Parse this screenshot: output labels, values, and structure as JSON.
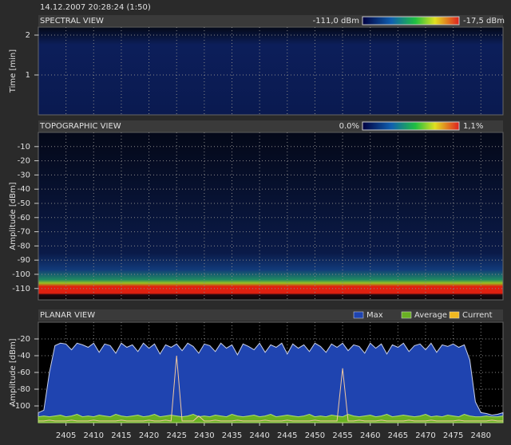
{
  "timestamp": "14.12.2007 20:28:24 (1:50)",
  "chart_data": [
    {
      "type": "heatmap",
      "title": "SPECTRAL VIEW",
      "y_label": "Time [min]",
      "ylim": [
        0,
        2.2
      ],
      "yticks": [
        1,
        2
      ],
      "grid": true,
      "scale_min_label": "-111,0 dBm",
      "scale_max_label": "-17,5 dBm"
    },
    {
      "type": "heatmap",
      "title": "TOPOGRAPHIC VIEW",
      "y_label": "Amplitude [dBm]",
      "ylim": [
        -118,
        0
      ],
      "yticks": [
        -10,
        -20,
        -30,
        -40,
        -50,
        -60,
        -70,
        -80,
        -90,
        -100,
        -110
      ],
      "grid": true,
      "scale_min_label": "0.0%",
      "scale_max_label": "1,1%"
    },
    {
      "type": "area",
      "title": "PLANAR VIEW",
      "y_label": "Amplitude [dBm]",
      "xlim": [
        2400,
        2484
      ],
      "ylim": [
        -120,
        0
      ],
      "xticks": [
        2405,
        2410,
        2415,
        2420,
        2425,
        2430,
        2435,
        2440,
        2445,
        2450,
        2455,
        2460,
        2465,
        2470,
        2475,
        2480
      ],
      "yticks": [
        -20,
        -40,
        -60,
        -80,
        -100
      ],
      "grid": true,
      "x": [
        2400,
        2401,
        2402,
        2403,
        2404,
        2405,
        2406,
        2407,
        2408,
        2409,
        2410,
        2411,
        2412,
        2413,
        2414,
        2415,
        2416,
        2417,
        2418,
        2419,
        2420,
        2421,
        2422,
        2423,
        2424,
        2425,
        2426,
        2427,
        2428,
        2429,
        2430,
        2431,
        2432,
        2433,
        2434,
        2435,
        2436,
        2437,
        2438,
        2439,
        2440,
        2441,
        2442,
        2443,
        2444,
        2445,
        2446,
        2447,
        2448,
        2449,
        2450,
        2451,
        2452,
        2453,
        2454,
        2455,
        2456,
        2457,
        2458,
        2459,
        2460,
        2461,
        2462,
        2463,
        2464,
        2465,
        2466,
        2467,
        2468,
        2469,
        2470,
        2471,
        2472,
        2473,
        2474,
        2475,
        2476,
        2477,
        2478,
        2479,
        2480,
        2481,
        2482,
        2483,
        2484
      ],
      "series": [
        {
          "name": "Max",
          "color": "#1f44b0",
          "values": [
            -108,
            -105,
            -60,
            -28,
            -25,
            -26,
            -33,
            -25,
            -27,
            -30,
            -25,
            -36,
            -26,
            -28,
            -37,
            -25,
            -30,
            -27,
            -35,
            -25,
            -31,
            -26,
            -38,
            -27,
            -30,
            -26,
            -34,
            -25,
            -29,
            -37,
            -26,
            -28,
            -35,
            -25,
            -31,
            -27,
            -39,
            -26,
            -29,
            -33,
            -25,
            -36,
            -27,
            -30,
            -25,
            -38,
            -26,
            -31,
            -27,
            -35,
            -25,
            -29,
            -36,
            -26,
            -30,
            -25,
            -34,
            -27,
            -29,
            -37,
            -25,
            -31,
            -26,
            -38,
            -27,
            -30,
            -25,
            -35,
            -28,
            -26,
            -33,
            -25,
            -36,
            -27,
            -29,
            -26,
            -30,
            -27,
            -45,
            -95,
            -108,
            -109,
            -111,
            -110,
            -108
          ]
        },
        {
          "name": "Average",
          "color": "#6ab023",
          "values": [
            -113,
            -112,
            -113,
            -112,
            -111,
            -113,
            -112,
            -110,
            -113,
            -112,
            -113,
            -111,
            -112,
            -113,
            -110,
            -112,
            -113,
            -112,
            -111,
            -113,
            -112,
            -110,
            -113,
            -112,
            -111,
            -112,
            -113,
            -112,
            -110,
            -113,
            -112,
            -113,
            -111,
            -112,
            -113,
            -110,
            -112,
            -113,
            -112,
            -111,
            -113,
            -112,
            -110,
            -113,
            -112,
            -111,
            -112,
            -113,
            -112,
            -110,
            -113,
            -112,
            -113,
            -111,
            -112,
            -113,
            -110,
            -112,
            -113,
            -112,
            -111,
            -113,
            -112,
            -110,
            -113,
            -112,
            -111,
            -112,
            -113,
            -112,
            -110,
            -113,
            -112,
            -113,
            -111,
            -112,
            -113,
            -110,
            -112,
            -113,
            -113,
            -112,
            -113,
            -113,
            -112
          ]
        },
        {
          "name": "Current",
          "color": "#f0b820",
          "values": [
            -118,
            -118,
            -117,
            -118,
            -118,
            -118,
            -117,
            -118,
            -118,
            -118,
            -117,
            -118,
            -118,
            -118,
            -118,
            -117,
            -118,
            -118,
            -118,
            -118,
            -117,
            -118,
            -118,
            -117,
            -118,
            -40,
            -118,
            -118,
            -118,
            -112,
            -118,
            -118,
            -117,
            -118,
            -118,
            -118,
            -117,
            -118,
            -118,
            -118,
            -118,
            -117,
            -118,
            -118,
            -118,
            -117,
            -118,
            -118,
            -118,
            -118,
            -117,
            -118,
            -118,
            -118,
            -118,
            -55,
            -118,
            -118,
            -117,
            -118,
            -118,
            -118,
            -117,
            -118,
            -118,
            -118,
            -118,
            -117,
            -118,
            -118,
            -118,
            -117,
            -118,
            -118,
            -118,
            -118,
            -117,
            -118,
            -118,
            -118,
            -118,
            -118,
            -117,
            -118,
            -118
          ]
        }
      ]
    }
  ]
}
